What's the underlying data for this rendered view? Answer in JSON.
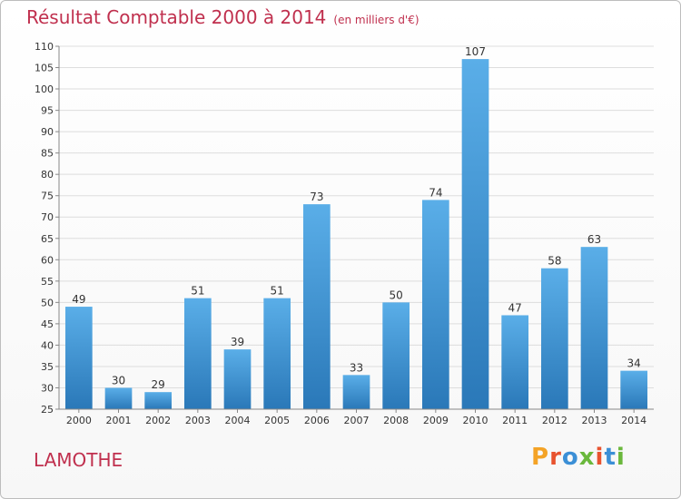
{
  "header": {
    "title": "Résultat Comptable 2000 à 2014",
    "unit": "(en milliers d'€)"
  },
  "footer": {
    "town": "LAMOTHE",
    "logo_text": "Proxiti"
  },
  "colors": {
    "title": "#c0304e",
    "bar_top": "#5aaee8",
    "bar_bottom": "#2a78b8",
    "grid": "#dddddd",
    "axis": "#888888",
    "logo_letters": [
      "#f4a326",
      "#e8532f",
      "#3b8fd6",
      "#6ab83c",
      "#e8532f",
      "#3b8fd6",
      "#6ab83c"
    ]
  },
  "chart_data": {
    "type": "bar",
    "title": "Résultat Comptable 2000 à 2014",
    "subtitle": "(en milliers d'€)",
    "xlabel": "",
    "ylabel": "",
    "categories": [
      "2000",
      "2001",
      "2002",
      "2003",
      "2004",
      "2005",
      "2006",
      "2007",
      "2008",
      "2009",
      "2010",
      "2011",
      "2012",
      "2013",
      "2014"
    ],
    "values": [
      49,
      30,
      29,
      51,
      39,
      51,
      73,
      33,
      50,
      74,
      107,
      47,
      58,
      63,
      34
    ],
    "ylim": [
      25,
      110
    ],
    "yticks": [
      25,
      30,
      35,
      40,
      45,
      50,
      55,
      60,
      65,
      70,
      75,
      80,
      85,
      90,
      95,
      100,
      105,
      110
    ],
    "grid": true,
    "legend": "none"
  }
}
